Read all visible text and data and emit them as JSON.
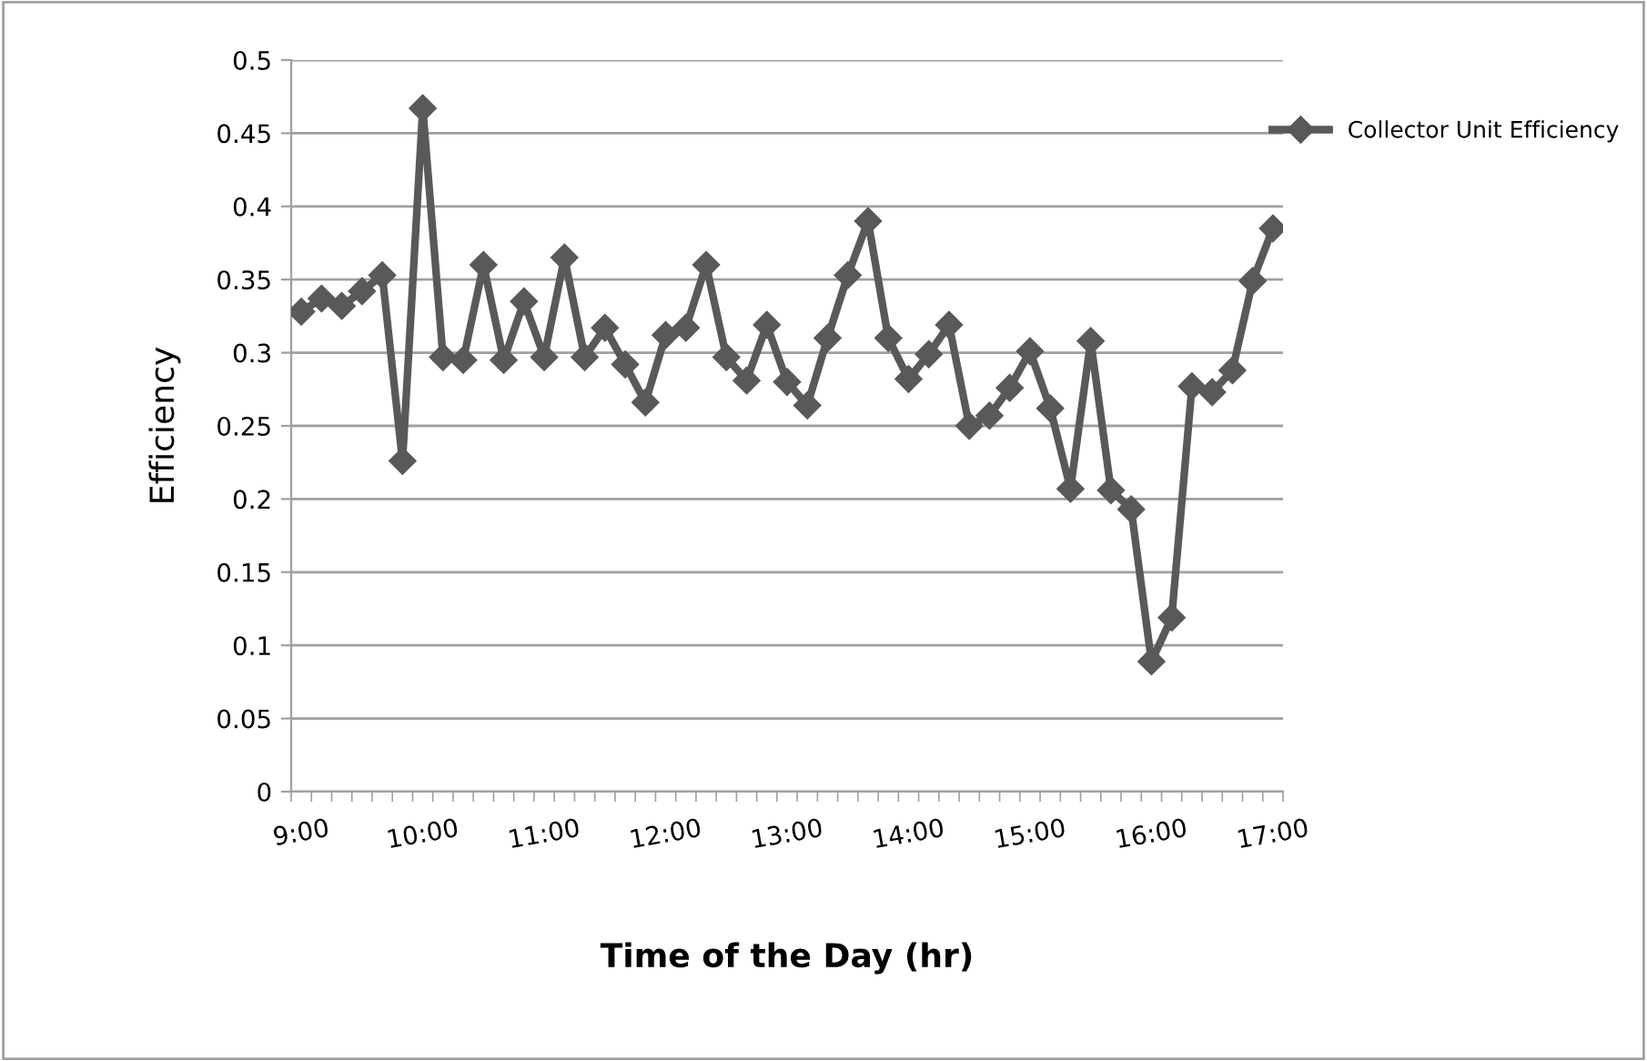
{
  "chart_data": {
    "type": "line",
    "xlabel": "Time of the Day (hr)",
    "ylabel": "Efficiency",
    "categories": [
      "9:00",
      null,
      null,
      null,
      null,
      null,
      "10:00",
      null,
      null,
      null,
      null,
      null,
      "11:00",
      null,
      null,
      null,
      null,
      null,
      "12:00",
      null,
      null,
      null,
      null,
      null,
      "13:00",
      null,
      null,
      null,
      null,
      null,
      "14:00",
      null,
      null,
      null,
      null,
      null,
      "15:00",
      null,
      null,
      null,
      null,
      null,
      "16:00",
      null,
      null,
      null,
      null,
      null,
      "17:00"
    ],
    "series": [
      {
        "name": "Collector Unit Efficiency",
        "color": "#595959",
        "values": [
          0.328,
          0.337,
          0.332,
          0.342,
          0.353,
          0.226,
          0.467,
          0.297,
          0.295,
          0.36,
          0.295,
          0.335,
          0.297,
          0.365,
          0.297,
          0.317,
          0.292,
          0.266,
          0.312,
          0.317,
          0.36,
          0.297,
          0.281,
          0.319,
          0.28,
          0.264,
          0.31,
          0.353,
          0.39,
          0.31,
          0.282,
          0.299,
          0.319,
          0.25,
          0.257,
          0.276,
          0.301,
          0.262,
          0.207,
          0.308,
          0.206,
          0.193,
          0.089,
          0.119,
          0.277,
          0.273,
          0.288,
          0.349,
          0.385
        ]
      }
    ],
    "ylim": [
      0,
      0.5
    ],
    "yticks": [
      0,
      0.05,
      0.1,
      0.15,
      0.2,
      0.25,
      0.3,
      0.35,
      0.4,
      0.45,
      0.5
    ],
    "grid": "y",
    "legend": "top right",
    "marker": "diamond",
    "line_style": "solid"
  }
}
